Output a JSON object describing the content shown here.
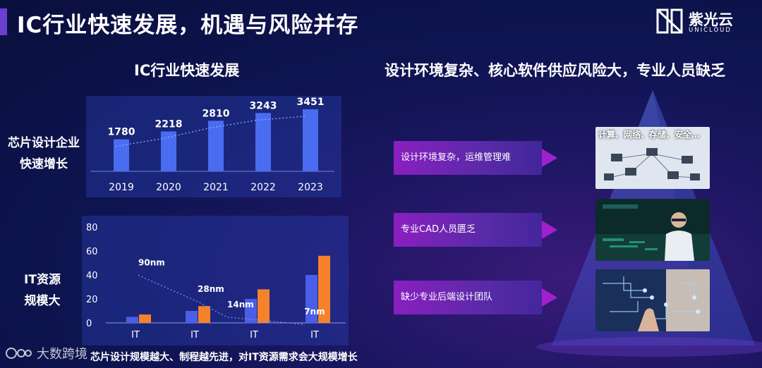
{
  "header": {
    "title": "IC行业快速发展，机遇与风险并存",
    "logo_cn": "紫光云",
    "logo_en": "UNICLOUD",
    "brand_color": "#6b3fd0"
  },
  "left": {
    "section_title": "IC行业快速发展",
    "label_top": [
      "芯片设计企业",
      "快速增长"
    ],
    "label_bottom": [
      "IT资源",
      "规模大"
    ],
    "bottom_note": "芯片设计规模越大、制程越先进，对IT资源需求会大规模增长"
  },
  "right": {
    "section_title": "设计环境复杂、核心软件供应风险大，专业人员缺乏",
    "issues": [
      {
        "label": "设计环境复杂，运维管理难"
      },
      {
        "label": "专业CAD人员匮乏"
      },
      {
        "label": "缺少专业后端设计团队"
      }
    ],
    "image_caption": "计算、网络、存储、安全…",
    "image_icons": [
      "network-computers-image",
      "lab-scientist-image",
      "ai-circuit-image"
    ]
  },
  "watermark": {
    "text": "大数跨境",
    "icon": "brand-logo-icon"
  },
  "chart_data": [
    {
      "type": "bar",
      "categories": [
        "2019",
        "2020",
        "2021",
        "2022",
        "2023"
      ],
      "values": [
        1780,
        2218,
        2810,
        3243,
        3451
      ],
      "ylim": [
        0,
        4000
      ],
      "grid": false,
      "trendline": true,
      "colors": {
        "bar": "#4a6cf0",
        "trend": "#9fb0ff"
      }
    },
    {
      "type": "bar",
      "categories": [
        "IT",
        "IT",
        "IT",
        "IT"
      ],
      "series": [
        {
          "values": [
            5,
            10,
            20,
            40
          ],
          "color": "#4a5ee8"
        },
        {
          "values": [
            7,
            14,
            28,
            56
          ],
          "color": "#f5822a"
        }
      ],
      "yticks": [
        0,
        20,
        40,
        60,
        80
      ],
      "ylim": [
        0,
        80
      ],
      "annotations": [
        {
          "text": "90nm",
          "x": 0,
          "y": 48
        },
        {
          "text": "28nm",
          "x": 1,
          "y": 26
        },
        {
          "text": "14nm",
          "x": 1.5,
          "y": 13
        },
        {
          "text": "7nm",
          "x": 2.8,
          "y": 7
        }
      ],
      "trendline": true
    }
  ]
}
